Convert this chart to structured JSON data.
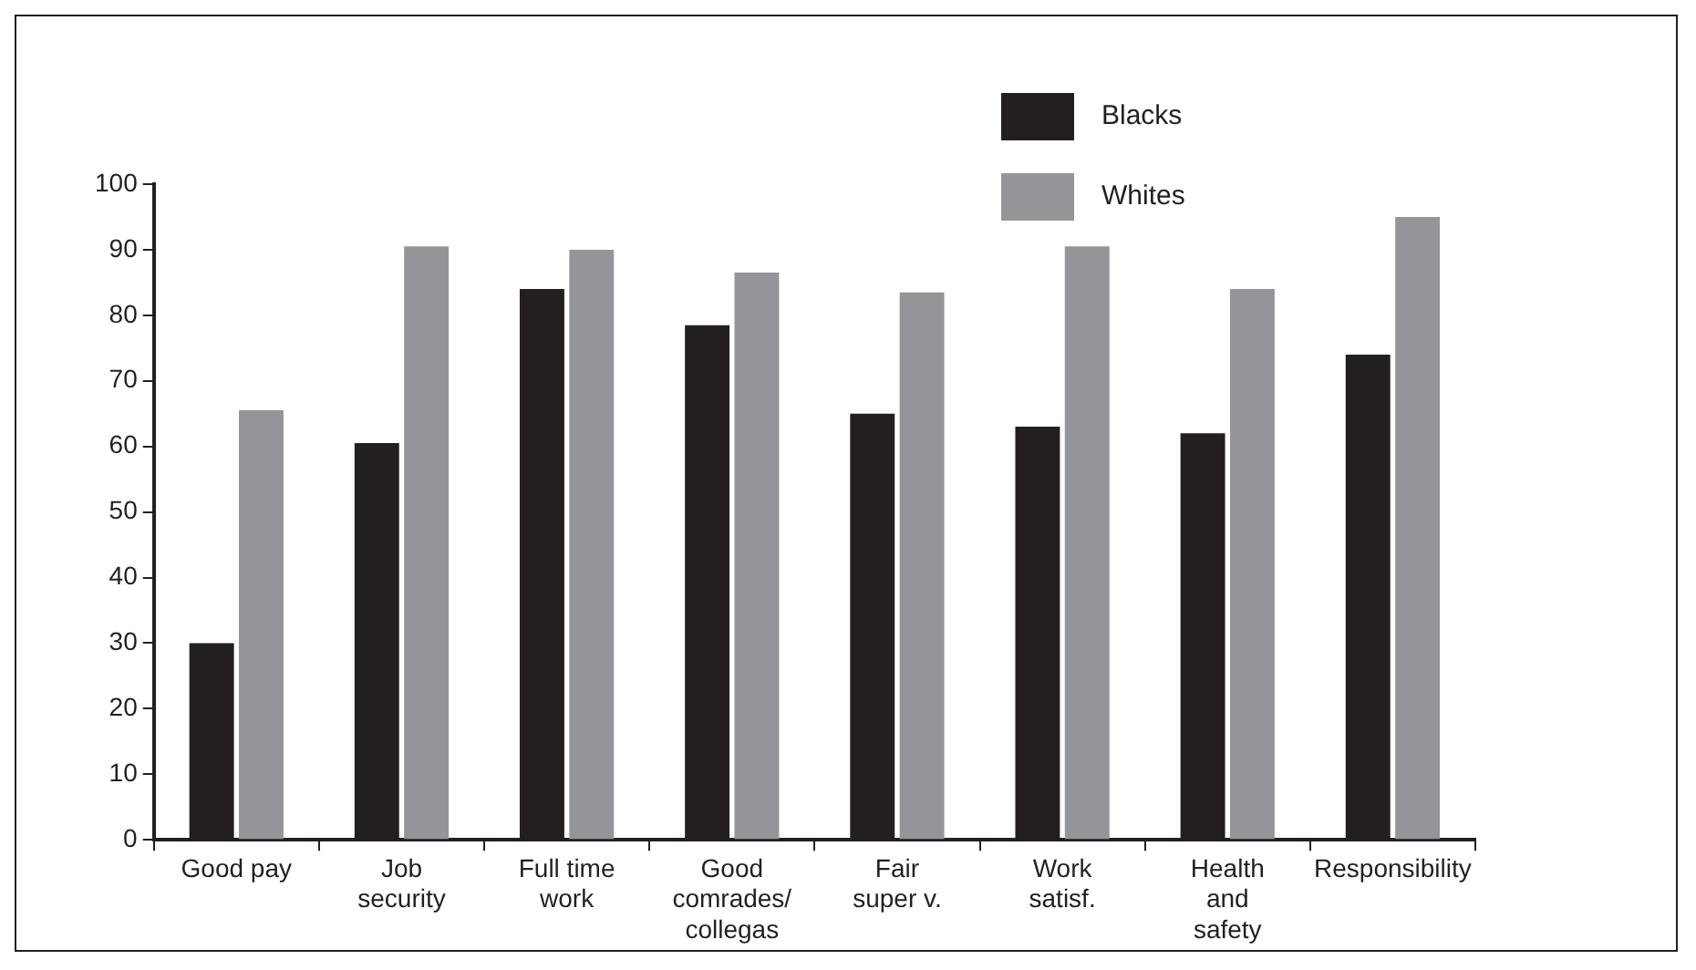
{
  "chart_data": {
    "type": "bar",
    "categories": [
      "Good pay",
      "Job security",
      "Full time work",
      "Good comrades/ collegas",
      "Fair super v.",
      "Work satisf.",
      "Health and safety",
      "Responsibility"
    ],
    "series": [
      {
        "name": "Blacks",
        "color": "#231f20",
        "values": [
          30,
          60.5,
          84,
          78.5,
          65,
          63,
          62,
          74
        ]
      },
      {
        "name": "Whites",
        "color": "#939598",
        "values": [
          65.5,
          90.5,
          90,
          86.5,
          83.5,
          90.5,
          84,
          95
        ]
      }
    ],
    "ylim": [
      0,
      100
    ],
    "yticks": [
      0,
      10,
      20,
      30,
      40,
      50,
      60,
      70,
      80,
      90,
      100
    ],
    "grid": false,
    "legend": "top right"
  }
}
